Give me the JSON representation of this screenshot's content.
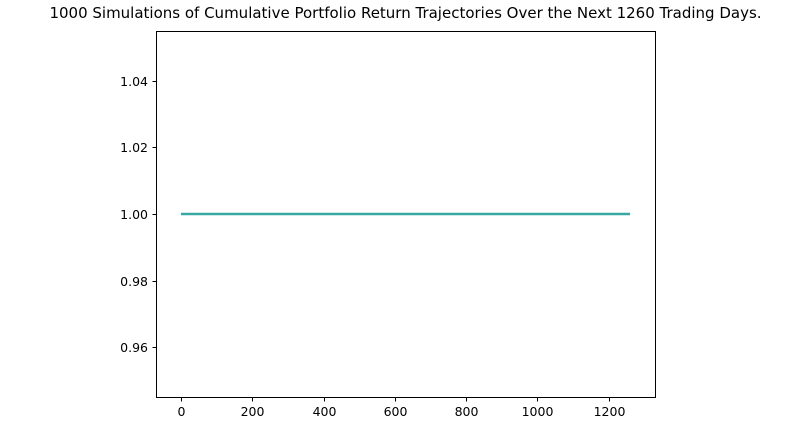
{
  "chart_data": {
    "type": "line",
    "title": "1000 Simulations of Cumulative Portfolio Return Trajectories Over the Next 1260 Trading Days.",
    "xlabel": "",
    "ylabel": "",
    "xlim": [
      -70,
      1330
    ],
    "ylim": [
      0.945,
      1.055
    ],
    "xticks": [
      0,
      200,
      400,
      600,
      800,
      1000,
      1200
    ],
    "yticks": [
      0.96,
      0.98,
      1.0,
      1.02,
      1.04
    ],
    "ytick_labels": [
      "0.96",
      "0.98",
      "1.00",
      "1.02",
      "1.04"
    ],
    "grid": false,
    "series": [
      {
        "x": [
          0,
          1260
        ],
        "y": [
          1.0,
          1.0
        ],
        "color": "#3aa8a2"
      }
    ]
  }
}
